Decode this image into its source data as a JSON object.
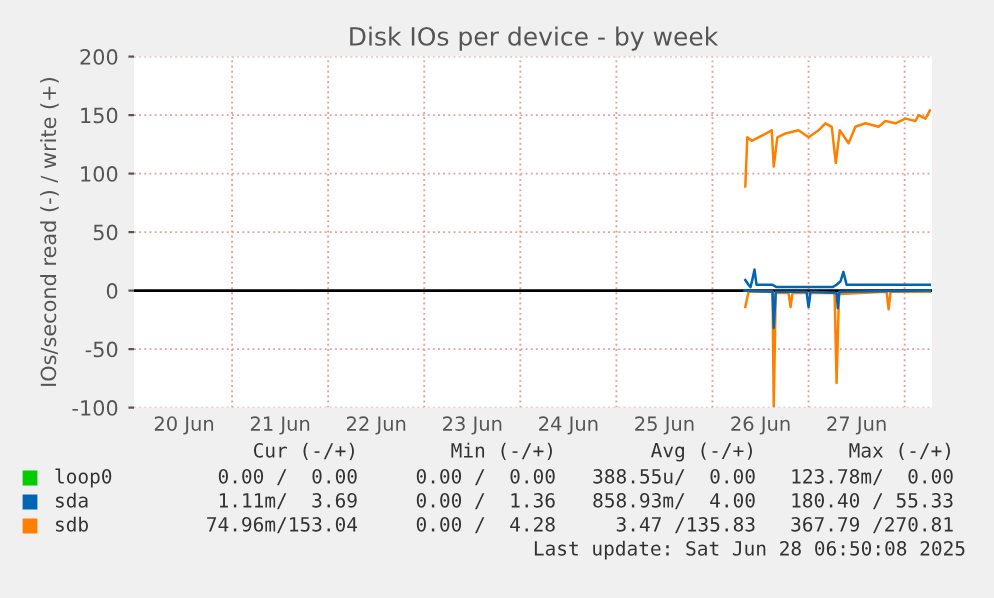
{
  "chart_data": {
    "type": "line",
    "title": "Disk IOs per device - by week",
    "ylabel": "IOs/second read (-) / write (+)",
    "xlim": [
      "2025-06-19T23:30",
      "2025-06-28T06:50"
    ],
    "xticks": [
      {
        "value": "2025-06-20T12:00",
        "label": "20 Jun"
      },
      {
        "value": "2025-06-21T12:00",
        "label": "21 Jun"
      },
      {
        "value": "2025-06-22T12:00",
        "label": "22 Jun"
      },
      {
        "value": "2025-06-23T12:00",
        "label": "23 Jun"
      },
      {
        "value": "2025-06-24T12:00",
        "label": "24 Jun"
      },
      {
        "value": "2025-06-25T12:00",
        "label": "25 Jun"
      },
      {
        "value": "2025-06-26T12:00",
        "label": "26 Jun"
      },
      {
        "value": "2025-06-27T12:00",
        "label": "27 Jun"
      },
      {
        "value": "2025-06-21T00:00",
        "label": null
      },
      {
        "value": "2025-06-22T00:00",
        "label": null
      },
      {
        "value": "2025-06-23T00:00",
        "label": null
      },
      {
        "value": "2025-06-24T00:00",
        "label": null
      },
      {
        "value": "2025-06-25T00:00",
        "label": null
      },
      {
        "value": "2025-06-26T00:00",
        "label": null
      },
      {
        "value": "2025-06-27T00:00",
        "label": null
      },
      {
        "value": "2025-06-28T00:00",
        "label": null
      }
    ],
    "ylim": [
      -100,
      200
    ],
    "yticks": [
      -100,
      -50,
      0,
      50,
      100,
      150,
      200
    ],
    "grid": true,
    "legend": "bottom",
    "ref_lines": [
      {
        "axis": "y",
        "value": 0,
        "label": null,
        "color": "#000000"
      }
    ],
    "series": [
      {
        "name": "loop0",
        "color": "#00cc00"
      },
      {
        "name": "sda",
        "color": "#0066b3",
        "x": [
          "2025-06-26T08:12",
          "2025-06-26T09:00",
          "2025-06-26T09:30",
          "2025-06-26T10:00",
          "2025-06-26T10:30",
          "2025-06-26T11:00",
          "2025-06-26T15:00",
          "2025-06-26T16:00",
          "2025-06-27T06:00",
          "2025-06-27T07:00",
          "2025-06-27T08:00",
          "2025-06-27T08:42",
          "2025-06-27T09:30",
          "2025-06-28T06:18"
        ],
        "values": [
          9,
          5,
          3,
          10,
          18,
          5,
          5,
          3,
          3,
          5,
          8,
          16,
          5,
          5
        ]
      },
      {
        "name": "sdb",
        "color": "#ff8000",
        "x": [
          "2025-06-26T08:12",
          "2025-06-26T08:42",
          "2025-06-26T09:48",
          "2025-06-26T11:30",
          "2025-06-26T13:12",
          "2025-06-26T14:48",
          "2025-06-26T15:18",
          "2025-06-26T16:12",
          "2025-06-26T18:00",
          "2025-06-26T21:30",
          "2025-06-27T00:00",
          "2025-06-27T02:30",
          "2025-06-27T04:12",
          "2025-06-27T05:48",
          "2025-06-27T06:48",
          "2025-06-27T07:48",
          "2025-06-27T10:00",
          "2025-06-27T11:42",
          "2025-06-27T14:12",
          "2025-06-27T17:30",
          "2025-06-27T19:12",
          "2025-06-27T21:42",
          "2025-06-28T00:12",
          "2025-06-28T02:42",
          "2025-06-28T03:30",
          "2025-06-28T05:12",
          "2025-06-28T06:18"
        ],
        "values": [
          89,
          131,
          128,
          131,
          134,
          137,
          106,
          131,
          134,
          137,
          131,
          137,
          143,
          140,
          109,
          137,
          126,
          140,
          143,
          140,
          145,
          143,
          147,
          145,
          150,
          147,
          154
        ]
      },
      {
        "color": "#ff8000",
        "x": [
          "2025-06-26T08:12",
          "2025-06-26T09:00",
          "2025-06-26T15:00",
          "2025-06-26T15:18",
          "2025-06-26T15:48",
          "2025-06-26T19:00",
          "2025-06-26T19:30",
          "2025-06-26T20:00",
          "2025-06-27T06:30",
          "2025-06-27T07:00",
          "2025-06-27T07:36",
          "2025-06-27T19:30",
          "2025-06-27T20:00",
          "2025-06-27T20:30",
          "2025-06-28T06:18"
        ],
        "values": [
          -14,
          -1,
          -1,
          -99,
          -2,
          -2,
          -14,
          -2,
          -2,
          -79,
          -3,
          -1,
          -16,
          -1,
          -1
        ]
      },
      {
        "color": "#0066b3",
        "x": [
          "2025-06-26T08:00",
          "2025-06-26T15:00",
          "2025-06-26T15:18",
          "2025-06-26T15:48",
          "2025-06-26T23:30",
          "2025-06-27T00:00",
          "2025-06-27T00:30",
          "2025-06-27T07:00",
          "2025-06-27T07:18",
          "2025-06-27T07:42",
          "2025-06-28T06:18"
        ],
        "values": [
          0,
          -1,
          -32,
          -1,
          -1,
          -14,
          -1,
          -2,
          -15,
          -1,
          0
        ]
      }
    ],
    "annotations": [
      "Cur (-/+)",
      "Min (-/+)",
      "Avg (-/+)",
      "Max (-/+)",
      "0.00 /  0.00",
      "0.00 /  0.00",
      "388.55u/  0.00",
      "123.78m/  0.00",
      "1.11m/  3.69",
      "0.00 /  1.36",
      "858.93m/  4.00",
      "180.40 / 55.33",
      "74.96m/153.04",
      "0.00 /  4.28",
      "3.47 /135.83",
      "367.79 /270.81",
      "Last update: Sat Jun 28 06:50:08 2025"
    ]
  }
}
